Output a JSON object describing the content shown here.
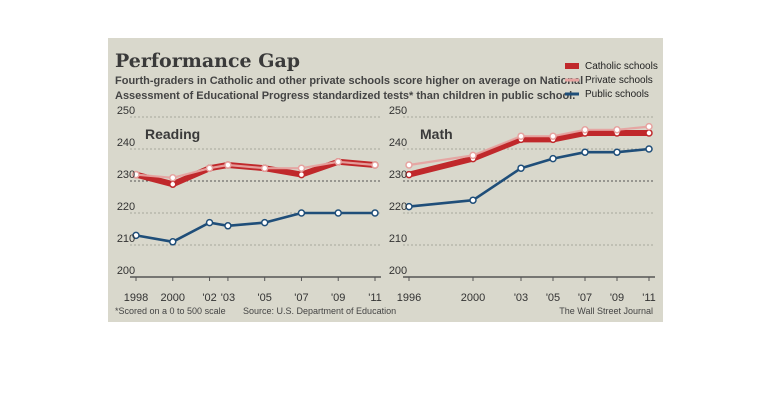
{
  "title": "Performance Gap",
  "subtitle": {
    "line1": "Fourth-graders in Catholic and other private schools score higher on average on National",
    "line2": "Assessment of Educational Progress standardized tests* than children in public school."
  },
  "legend": {
    "placement": "top-right",
    "items": [
      {
        "label": "Catholic schools",
        "color": "#c0282b"
      },
      {
        "label": "Private schools",
        "color": "#e6a3a0"
      },
      {
        "label": "Public schools",
        "color": "#1f4e79"
      }
    ]
  },
  "footnote": "*Scored on a 0 to 500 scale",
  "source": "Source: U.S. Department of Education",
  "credit": "The Wall Street Journal",
  "colors": {
    "background": "#d9d8cc",
    "catholic": "#c0282b",
    "private": "#e6a3a0",
    "public": "#1f4e79",
    "grid_major": "#555555",
    "grid_minor": "#a8a79c"
  },
  "chart_data": [
    {
      "type": "line",
      "title": "Reading",
      "x": [
        1998,
        2000,
        2002,
        2003,
        2005,
        2007,
        2009,
        2011
      ],
      "x_tick_labels": [
        "1998",
        "2000",
        "'02",
        "'03",
        "'05",
        "'07",
        "'09",
        "'11"
      ],
      "ylim": [
        200,
        250
      ],
      "y_ticks": [
        200,
        210,
        220,
        230,
        240,
        250
      ],
      "grid": true,
      "series": [
        {
          "name": "Catholic schools",
          "values": [
            232,
            229,
            234,
            235,
            234,
            232,
            236,
            235
          ]
        },
        {
          "name": "Private schools",
          "values": [
            232,
            231,
            234,
            235,
            234,
            234,
            236,
            235
          ]
        },
        {
          "name": "Public schools",
          "values": [
            213,
            211,
            217,
            216,
            217,
            220,
            220,
            220
          ]
        }
      ]
    },
    {
      "type": "line",
      "title": "Math",
      "x": [
        1996,
        2000,
        2003,
        2005,
        2007,
        2009,
        2011
      ],
      "x_tick_labels": [
        "1996",
        "2000",
        "'03",
        "'05",
        "'07",
        "'09",
        "'11"
      ],
      "ylim": [
        200,
        250
      ],
      "y_ticks": [
        200,
        210,
        220,
        230,
        240,
        250
      ],
      "grid": true,
      "series": [
        {
          "name": "Catholic schools",
          "values": [
            232,
            237,
            243,
            243,
            245,
            245,
            245
          ]
        },
        {
          "name": "Private schools",
          "values": [
            235,
            238,
            244,
            244,
            246,
            246,
            247
          ]
        },
        {
          "name": "Public schools",
          "values": [
            222,
            224,
            234,
            237,
            239,
            239,
            240
          ]
        }
      ]
    }
  ]
}
